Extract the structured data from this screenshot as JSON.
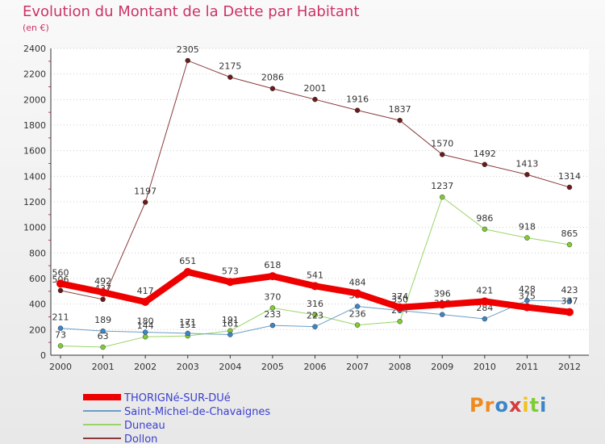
{
  "title": "Evolution du Montant de la Dette par Habitant",
  "subtitle": "(en €)",
  "logo_text": "Proxiti",
  "colors": {
    "title": "#cc3366",
    "legend_text": "#3a3fd0",
    "axis": "#333333",
    "grid": "#cccccc"
  },
  "chart_data": {
    "type": "line",
    "x": [
      "2000",
      "2001",
      "2002",
      "2003",
      "2004",
      "2005",
      "2006",
      "2007",
      "2008",
      "2009",
      "2010",
      "2011",
      "2012"
    ],
    "ylim": [
      0,
      2400
    ],
    "yticks": [
      0,
      200,
      400,
      600,
      800,
      1000,
      1200,
      1400,
      1600,
      1800,
      2000,
      2200,
      2400
    ],
    "grid": true,
    "legend_position": "bottom-left",
    "series": [
      {
        "name": "Dollon",
        "color": "#6b1a1a",
        "line_color": "#8a3a3a",
        "width": 1,
        "values": [
          506,
          437,
          1197,
          2305,
          2175,
          2086,
          2001,
          1916,
          1837,
          1570,
          1492,
          1413,
          1314
        ],
        "labels": [
          "506",
          "437",
          "1197",
          "2305",
          "2175",
          "2086",
          "2001",
          "1916",
          "1837",
          "1570",
          "1492",
          "1413",
          "1314"
        ]
      },
      {
        "name": "Duneau",
        "color": "#7fcc33",
        "line_color": "#99d566",
        "width": 1,
        "values": [
          73,
          63,
          144,
          151,
          191,
          370,
          316,
          236,
          264,
          1237,
          986,
          918,
          865
        ],
        "labels": [
          "73",
          "63",
          "144",
          "151",
          "191",
          "370",
          "316",
          "236",
          "264",
          "1237",
          "986",
          "918",
          "865"
        ]
      },
      {
        "name": "Saint-Michel-de-Chavaignes",
        "color": "#3a86c8",
        "line_color": "#6a9ec8",
        "width": 1,
        "values": [
          211,
          189,
          180,
          171,
          161,
          233,
          223,
          382,
          350,
          318,
          284,
          428,
          423
        ],
        "labels": [
          "211",
          "189",
          "180",
          "171",
          "161",
          "233",
          "223",
          "382",
          "350",
          "318",
          "284",
          "428",
          "423"
        ]
      },
      {
        "name": "THORIGNé-SUR-DUé",
        "color": "#ee0000",
        "line_color": "#ee0000",
        "width": 8,
        "values": [
          560,
          492,
          417,
          651,
          573,
          618,
          541,
          484,
          374,
          396,
          421,
          375,
          337
        ],
        "labels": [
          "560",
          "492",
          "417",
          "651",
          "573",
          "618",
          "541",
          "484",
          "374",
          "396",
          "421",
          "375",
          "337"
        ]
      }
    ],
    "legend": [
      "THORIGNé-SUR-DUé",
      "Saint-Michel-de-Chavaignes",
      "Duneau",
      "Dollon"
    ]
  }
}
